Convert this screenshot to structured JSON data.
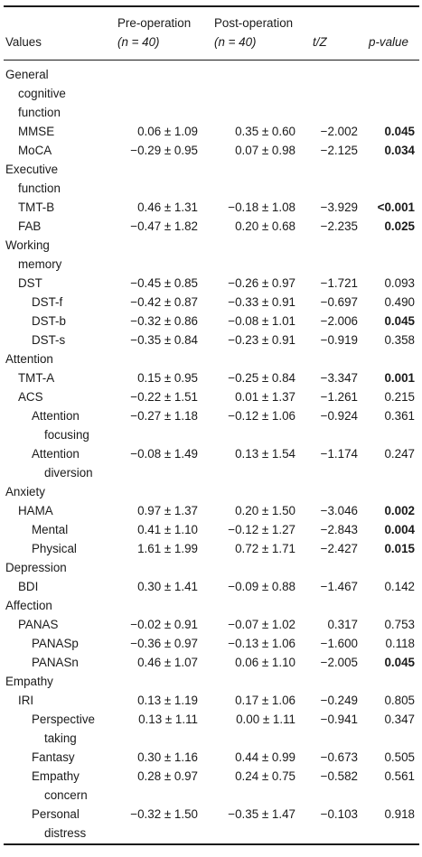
{
  "header": {
    "values": "Values",
    "pre_line1": "Pre-operation",
    "pre_line2": "(n = 40)",
    "post_line1": "Post-operation",
    "post_line2": "(n = 40)",
    "tz": "t/Z",
    "p": "p-value"
  },
  "rows": [
    {
      "label": [
        "General",
        "cognitive",
        "function"
      ],
      "indent": 0
    },
    {
      "label": [
        "MMSE"
      ],
      "indent": 1,
      "pre": "0.06 ± 1.09",
      "post": "0.35 ± 0.60",
      "tz": "−2.002",
      "p": "0.045",
      "sig": true
    },
    {
      "label": [
        "MoCA"
      ],
      "indent": 1,
      "pre": "−0.29 ± 0.95",
      "post": "0.07 ± 0.98",
      "tz": "−2.125",
      "p": "0.034",
      "sig": true
    },
    {
      "label": [
        "Executive",
        "function"
      ],
      "indent": 0
    },
    {
      "label": [
        "TMT-B"
      ],
      "indent": 1,
      "pre": "0.46 ± 1.31",
      "post": "−0.18 ± 1.08",
      "tz": "−3.929",
      "p": "<0.001",
      "sig": true
    },
    {
      "label": [
        "FAB"
      ],
      "indent": 1,
      "pre": "−0.47 ± 1.82",
      "post": "0.20 ± 0.68",
      "tz": "−2.235",
      "p": "0.025",
      "sig": true
    },
    {
      "label": [
        "Working",
        "memory"
      ],
      "indent": 0
    },
    {
      "label": [
        "DST"
      ],
      "indent": 1,
      "pre": "−0.45 ± 0.85",
      "post": "−0.26 ± 0.97",
      "tz": "−1.721",
      "p": "0.093",
      "sig": false
    },
    {
      "label": [
        "DST-f"
      ],
      "indent": 2,
      "pre": "−0.42 ± 0.87",
      "post": "−0.33 ± 0.91",
      "tz": "−0.697",
      "p": "0.490",
      "sig": false
    },
    {
      "label": [
        "DST-b"
      ],
      "indent": 2,
      "pre": "−0.32 ± 0.86",
      "post": "−0.08 ± 1.01",
      "tz": "−2.006",
      "p": "0.045",
      "sig": true
    },
    {
      "label": [
        "DST-s"
      ],
      "indent": 2,
      "pre": "−0.35 ± 0.84",
      "post": "−0.23 ± 0.91",
      "tz": "−0.919",
      "p": "0.358",
      "sig": false
    },
    {
      "label": [
        "Attention"
      ],
      "indent": 0
    },
    {
      "label": [
        "TMT-A"
      ],
      "indent": 1,
      "pre": "0.15 ± 0.95",
      "post": "−0.25 ± 0.84",
      "tz": "−3.347",
      "p": "0.001",
      "sig": true
    },
    {
      "label": [
        "ACS"
      ],
      "indent": 1,
      "pre": "−0.22 ± 1.51",
      "post": "0.01 ± 1.37",
      "tz": "−1.261",
      "p": "0.215",
      "sig": false
    },
    {
      "label": [
        "Attention",
        "focusing"
      ],
      "indent": 2,
      "pre": "−0.27 ± 1.18",
      "post": "−0.12 ± 1.06",
      "tz": "−0.924",
      "p": "0.361",
      "sig": false
    },
    {
      "label": [
        "Attention",
        "diversion"
      ],
      "indent": 2,
      "pre": "−0.08 ± 1.49",
      "post": "0.13 ± 1.54",
      "tz": "−1.174",
      "p": "0.247",
      "sig": false
    },
    {
      "label": [
        "Anxiety"
      ],
      "indent": 0
    },
    {
      "label": [
        "HAMA"
      ],
      "indent": 1,
      "pre": "0.97 ± 1.37",
      "post": "0.20 ± 1.50",
      "tz": "−3.046",
      "p": "0.002",
      "sig": true
    },
    {
      "label": [
        "Mental"
      ],
      "indent": 2,
      "pre": "0.41 ± 1.10",
      "post": "−0.12 ± 1.27",
      "tz": "−2.843",
      "p": "0.004",
      "sig": true
    },
    {
      "label": [
        "Physical"
      ],
      "indent": 2,
      "pre": "1.61 ± 1.99",
      "post": "0.72 ± 1.71",
      "tz": "−2.427",
      "p": "0.015",
      "sig": true
    },
    {
      "label": [
        "Depression"
      ],
      "indent": 0
    },
    {
      "label": [
        "BDI"
      ],
      "indent": 1,
      "pre": "0.30 ± 1.41",
      "post": "−0.09 ± 0.88",
      "tz": "−1.467",
      "p": "0.142",
      "sig": false
    },
    {
      "label": [
        "Affection"
      ],
      "indent": 0
    },
    {
      "label": [
        "PANAS"
      ],
      "indent": 1,
      "pre": "−0.02 ± 0.91",
      "post": "−0.07 ± 1.02",
      "tz": "0.317",
      "p": "0.753",
      "sig": false
    },
    {
      "label": [
        "PANASp"
      ],
      "indent": 2,
      "pre": "−0.36 ± 0.97",
      "post": "−0.13 ± 1.06",
      "tz": "−1.600",
      "p": "0.118",
      "sig": false
    },
    {
      "label": [
        "PANASn"
      ],
      "indent": 2,
      "pre": "0.46 ± 1.07",
      "post": "0.06 ± 1.10",
      "tz": "−2.005",
      "p": "0.045",
      "sig": true
    },
    {
      "label": [
        "Empathy"
      ],
      "indent": 0
    },
    {
      "label": [
        "IRI"
      ],
      "indent": 1,
      "pre": "0.13 ± 1.19",
      "post": "0.17 ± 1.06",
      "tz": "−0.249",
      "p": "0.805",
      "sig": false
    },
    {
      "label": [
        "Perspective",
        "taking"
      ],
      "indent": 2,
      "pre": "0.13 ± 1.11",
      "post": "0.00 ± 1.11",
      "tz": "−0.941",
      "p": "0.347",
      "sig": false
    },
    {
      "label": [
        "Fantasy"
      ],
      "indent": 2,
      "pre": "0.30 ± 1.16",
      "post": "0.44 ± 0.99",
      "tz": "−0.673",
      "p": "0.505",
      "sig": false
    },
    {
      "label": [
        "Empathy",
        "concern"
      ],
      "indent": 2,
      "pre": "0.28 ± 0.97",
      "post": "0.24 ± 0.75",
      "tz": "−0.582",
      "p": "0.561",
      "sig": false
    },
    {
      "label": [
        "Personal",
        "distress"
      ],
      "indent": 2,
      "pre": "−0.32 ± 1.50",
      "post": "−0.35 ± 1.47",
      "tz": "−0.103",
      "p": "0.918",
      "sig": false
    }
  ]
}
